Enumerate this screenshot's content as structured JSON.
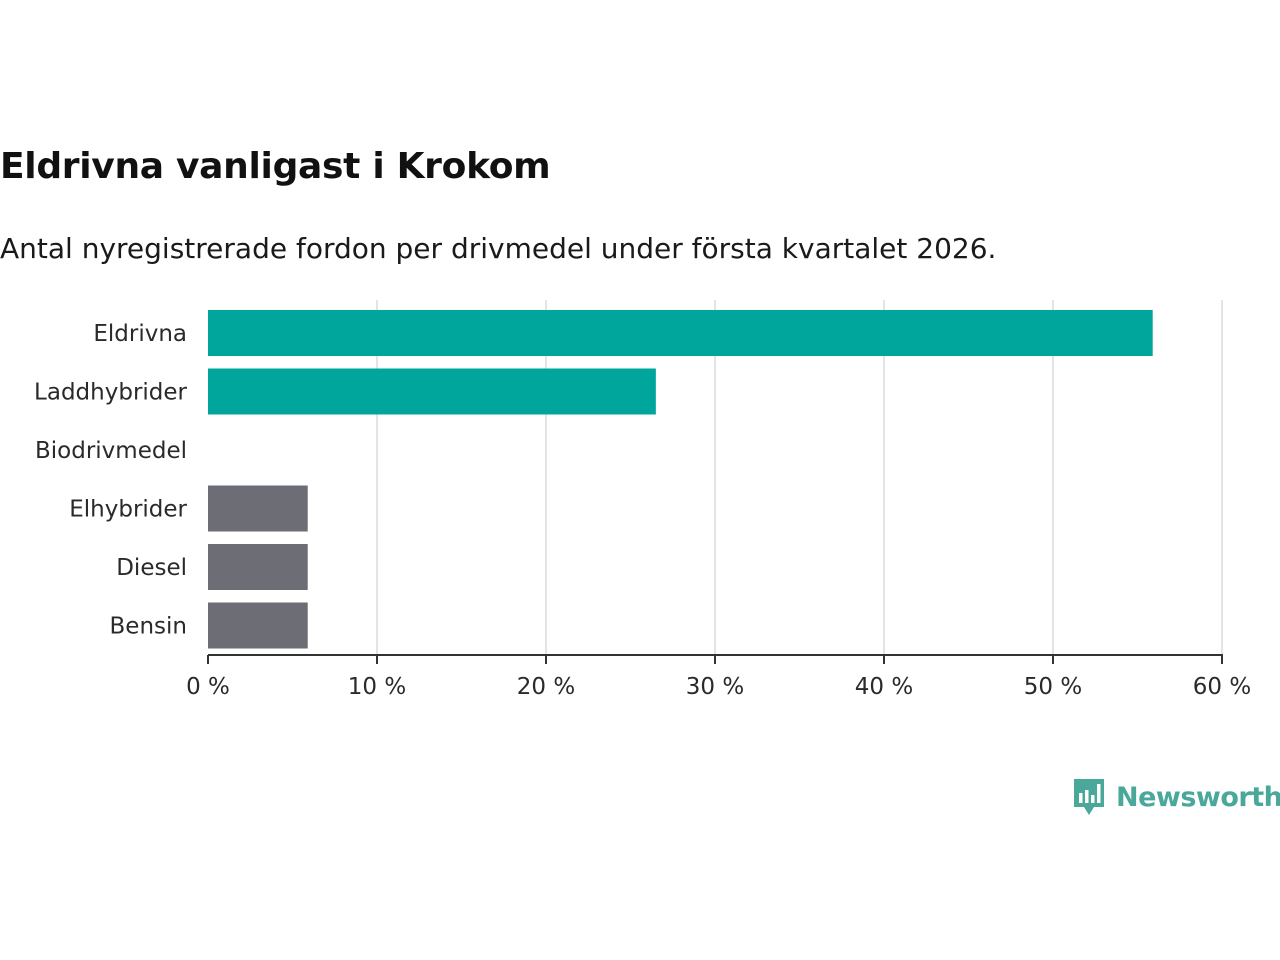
{
  "colors": {
    "highlight": "#00a69c",
    "neutral": "#6d6d75",
    "grid": "#dcdcdc",
    "axis": "#333333",
    "brand": "#4aa89a"
  },
  "brand": {
    "name": "Newsworthy",
    "icon": "newsworthy-logo-icon"
  },
  "chart_data": {
    "type": "bar",
    "orientation": "horizontal",
    "title": "Eldrivna vanligast i Krokom",
    "subtitle": "Antal nyregistrerade fordon per drivmedel under första kvartalet 2026.",
    "categories": [
      "Eldrivna",
      "Laddhybrider",
      "Biodrivmedel",
      "Elhybrider",
      "Diesel",
      "Bensin"
    ],
    "values": [
      55.9,
      26.5,
      0,
      5.9,
      5.9,
      5.9
    ],
    "bar_colors": [
      "highlight",
      "highlight",
      "neutral",
      "neutral",
      "neutral",
      "neutral"
    ],
    "xlabel": "",
    "ylabel": "",
    "xlim": [
      0,
      60
    ],
    "xticks": [
      0,
      10,
      20,
      30,
      40,
      50,
      60
    ],
    "xtick_labels": [
      "0 %",
      "10 %",
      "20 %",
      "30 %",
      "40 %",
      "50 %",
      "60 %"
    ],
    "grid": true,
    "legend": "none"
  }
}
